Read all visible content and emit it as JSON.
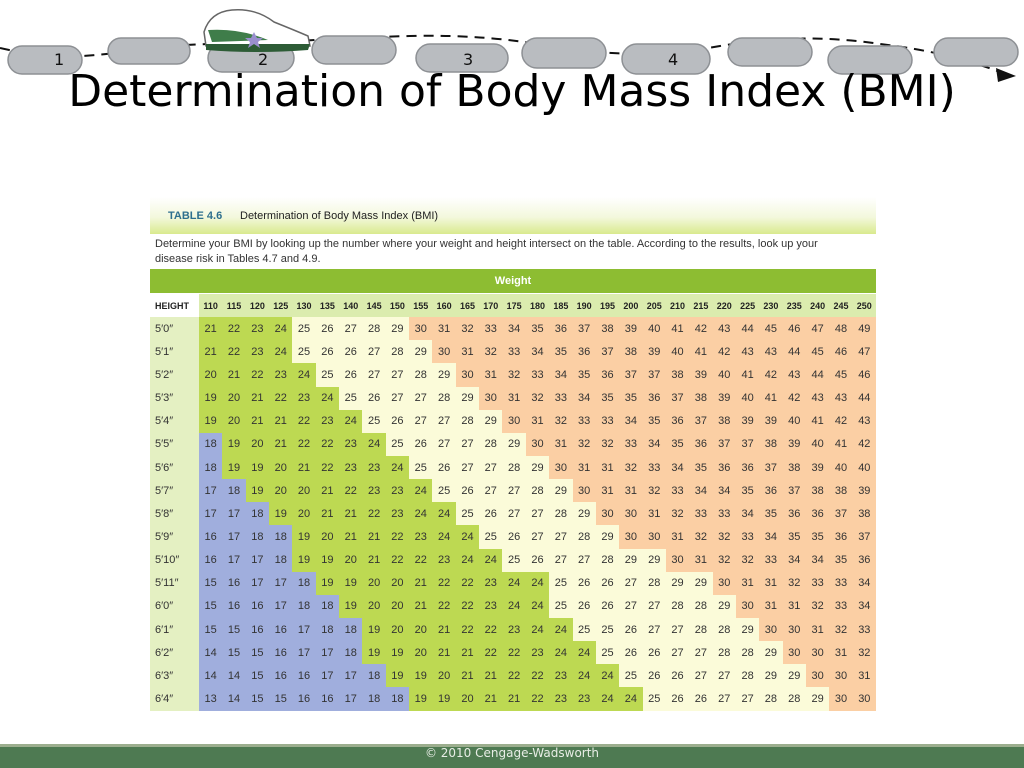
{
  "header": {
    "steps": [
      "1",
      "2",
      "3",
      "4"
    ],
    "icons": [
      "sneaker-icon",
      "footprint-icon",
      "arrowhead-icon"
    ]
  },
  "title": "Determination of Body Mass Index (BMI)",
  "table": {
    "number": "TABLE 4.6",
    "heading": "Determination of Body Mass Index (BMI)",
    "caption": "Determine your BMI by looking up the number where your weight and height intersect on the table. According to the results, look up your disease risk in Tables 4.7 and 4.9.",
    "weight_label": "Weight",
    "height_label": "HEIGHT",
    "weights": [
      "110",
      "115",
      "120",
      "125",
      "130",
      "135",
      "140",
      "145",
      "150",
      "155",
      "160",
      "165",
      "170",
      "175",
      "180",
      "185",
      "190",
      "195",
      "200",
      "205",
      "210",
      "215",
      "220",
      "225",
      "230",
      "235",
      "240",
      "245",
      "250"
    ],
    "rows": [
      {
        "height": "5′0″",
        "values": [
          21,
          22,
          23,
          24,
          25,
          26,
          27,
          28,
          29,
          30,
          31,
          32,
          33,
          34,
          35,
          36,
          37,
          38,
          39,
          40,
          41,
          42,
          43,
          44,
          45,
          46,
          47,
          48,
          49
        ]
      },
      {
        "height": "5′1″",
        "values": [
          21,
          22,
          23,
          24,
          25,
          26,
          26,
          27,
          28,
          29,
          30,
          31,
          32,
          33,
          34,
          35,
          36,
          37,
          38,
          39,
          40,
          41,
          42,
          43,
          43,
          44,
          45,
          46,
          47
        ]
      },
      {
        "height": "5′2″",
        "values": [
          20,
          21,
          22,
          23,
          24,
          25,
          26,
          27,
          27,
          28,
          29,
          30,
          31,
          32,
          33,
          34,
          35,
          36,
          37,
          37,
          38,
          39,
          40,
          41,
          42,
          43,
          44,
          45,
          46
        ]
      },
      {
        "height": "5′3″",
        "values": [
          19,
          20,
          21,
          22,
          23,
          24,
          25,
          26,
          27,
          27,
          28,
          29,
          30,
          31,
          32,
          33,
          34,
          35,
          35,
          36,
          37,
          38,
          39,
          40,
          41,
          42,
          43,
          43,
          44
        ]
      },
      {
        "height": "5′4″",
        "values": [
          19,
          20,
          21,
          21,
          22,
          23,
          24,
          25,
          26,
          27,
          27,
          28,
          29,
          30,
          31,
          32,
          33,
          33,
          34,
          35,
          36,
          37,
          38,
          39,
          39,
          40,
          41,
          42,
          43
        ]
      },
      {
        "height": "5′5″",
        "values": [
          18,
          19,
          20,
          21,
          22,
          22,
          23,
          24,
          25,
          26,
          27,
          27,
          28,
          29,
          30,
          31,
          32,
          32,
          33,
          34,
          35,
          36,
          37,
          37,
          38,
          39,
          40,
          41,
          42
        ]
      },
      {
        "height": "5′6″",
        "values": [
          18,
          19,
          19,
          20,
          21,
          22,
          23,
          23,
          24,
          25,
          26,
          27,
          27,
          28,
          29,
          30,
          31,
          31,
          32,
          33,
          34,
          35,
          36,
          36,
          37,
          38,
          39,
          40,
          40
        ]
      },
      {
        "height": "5′7″",
        "values": [
          17,
          18,
          19,
          20,
          20,
          21,
          22,
          23,
          23,
          24,
          25,
          26,
          27,
          27,
          28,
          29,
          30,
          31,
          31,
          32,
          33,
          34,
          34,
          35,
          36,
          37,
          38,
          38,
          39
        ]
      },
      {
        "height": "5′8″",
        "values": [
          17,
          17,
          18,
          19,
          20,
          21,
          21,
          22,
          23,
          24,
          24,
          25,
          26,
          27,
          27,
          28,
          29,
          30,
          30,
          31,
          32,
          33,
          33,
          34,
          35,
          36,
          36,
          37,
          38
        ]
      },
      {
        "height": "5′9″",
        "values": [
          16,
          17,
          18,
          18,
          19,
          20,
          21,
          21,
          22,
          23,
          24,
          24,
          25,
          26,
          27,
          27,
          28,
          29,
          30,
          30,
          31,
          32,
          32,
          33,
          34,
          35,
          35,
          36,
          37
        ]
      },
      {
        "height": "5′10″",
        "values": [
          16,
          17,
          17,
          18,
          19,
          19,
          20,
          21,
          22,
          22,
          23,
          24,
          24,
          25,
          26,
          27,
          27,
          28,
          29,
          29,
          30,
          31,
          32,
          32,
          33,
          34,
          34,
          35,
          36
        ]
      },
      {
        "height": "5′11″",
        "values": [
          15,
          16,
          17,
          17,
          18,
          19,
          19,
          20,
          20,
          21,
          22,
          22,
          23,
          24,
          24,
          25,
          26,
          26,
          27,
          28,
          29,
          29,
          30,
          31,
          31,
          32,
          33,
          33,
          34
        ]
      },
      {
        "height": "6′0″",
        "values": [
          15,
          16,
          16,
          17,
          18,
          18,
          19,
          20,
          20,
          21,
          22,
          22,
          23,
          24,
          24,
          25,
          26,
          26,
          27,
          27,
          28,
          28,
          29,
          30,
          31,
          31,
          32,
          33,
          34
        ]
      },
      {
        "height": "6′1″",
        "values": [
          15,
          15,
          16,
          16,
          17,
          18,
          18,
          19,
          20,
          20,
          21,
          22,
          22,
          23,
          24,
          24,
          25,
          25,
          26,
          27,
          27,
          28,
          28,
          29,
          30,
          30,
          31,
          32,
          33
        ]
      },
      {
        "height": "6′2″",
        "values": [
          14,
          15,
          15,
          16,
          17,
          17,
          18,
          19,
          19,
          20,
          21,
          21,
          22,
          22,
          23,
          24,
          24,
          25,
          26,
          26,
          27,
          27,
          28,
          28,
          29,
          30,
          30,
          31,
          32
        ]
      },
      {
        "height": "6′3″",
        "values": [
          14,
          14,
          15,
          16,
          16,
          17,
          17,
          18,
          19,
          19,
          20,
          21,
          21,
          22,
          22,
          23,
          24,
          24,
          25,
          26,
          26,
          27,
          27,
          28,
          29,
          29,
          30,
          30,
          31
        ]
      },
      {
        "height": "6′4″",
        "values": [
          13,
          14,
          15,
          15,
          16,
          16,
          17,
          18,
          18,
          19,
          19,
          20,
          21,
          21,
          22,
          23,
          23,
          24,
          24,
          25,
          26,
          26,
          27,
          27,
          28,
          28,
          29,
          30,
          30
        ]
      }
    ],
    "band_colors": {
      "under_19": "#a0aedd",
      "19_to_24": "#bdd952",
      "25_to_29": "#fbfbd9",
      "30_plus": "#fbcfa4"
    }
  },
  "footer": {
    "copyright": "© 2010 Cengage-Wadsworth"
  }
}
